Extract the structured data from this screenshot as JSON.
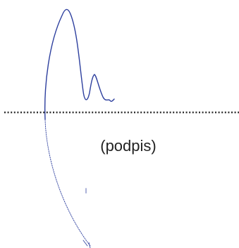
{
  "signature_field": {
    "caption": "(podpis)"
  }
}
